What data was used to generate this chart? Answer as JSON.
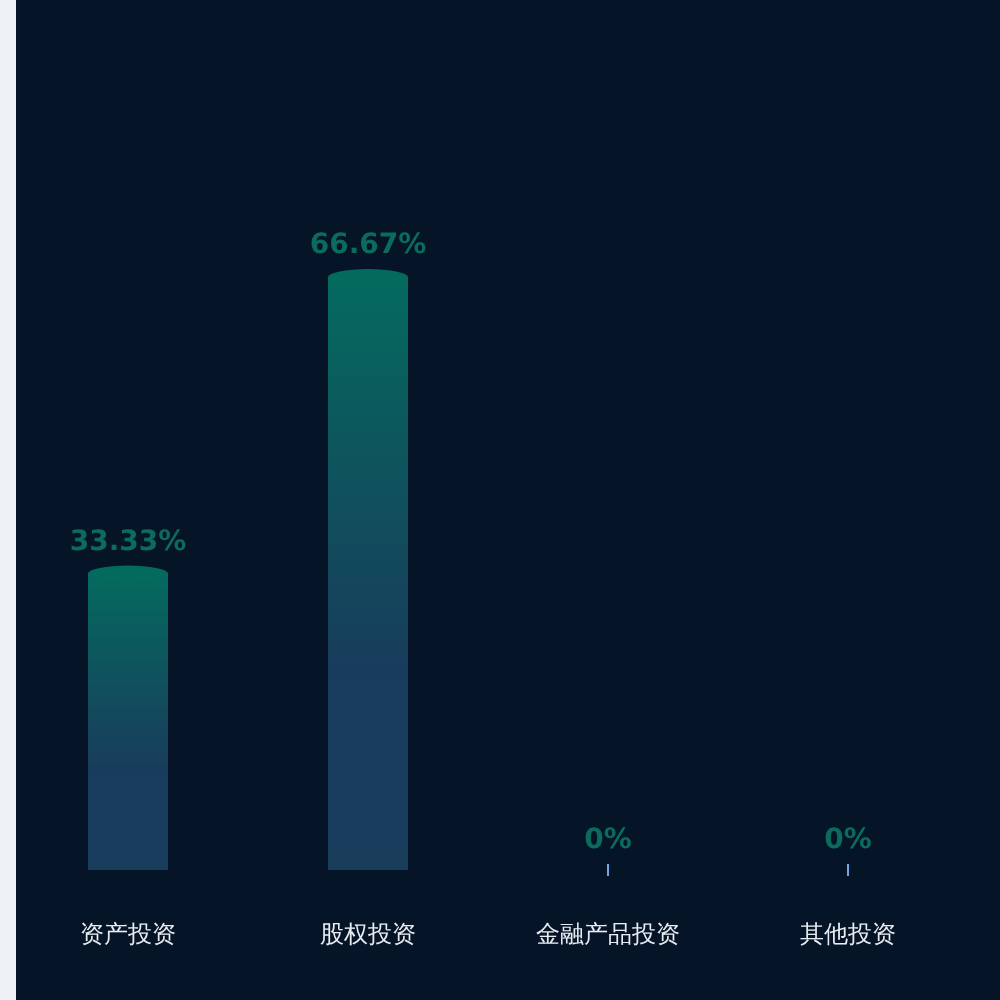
{
  "chart_data": {
    "type": "bar",
    "categories": [
      "资产投资",
      "股权投资",
      "金融产品投资",
      "其他投资"
    ],
    "values": [
      33.33,
      66.67,
      0,
      0
    ],
    "value_labels": [
      "33.33%",
      "66.67%",
      "0%",
      "0%"
    ],
    "color": "#046a5e"
  }
}
